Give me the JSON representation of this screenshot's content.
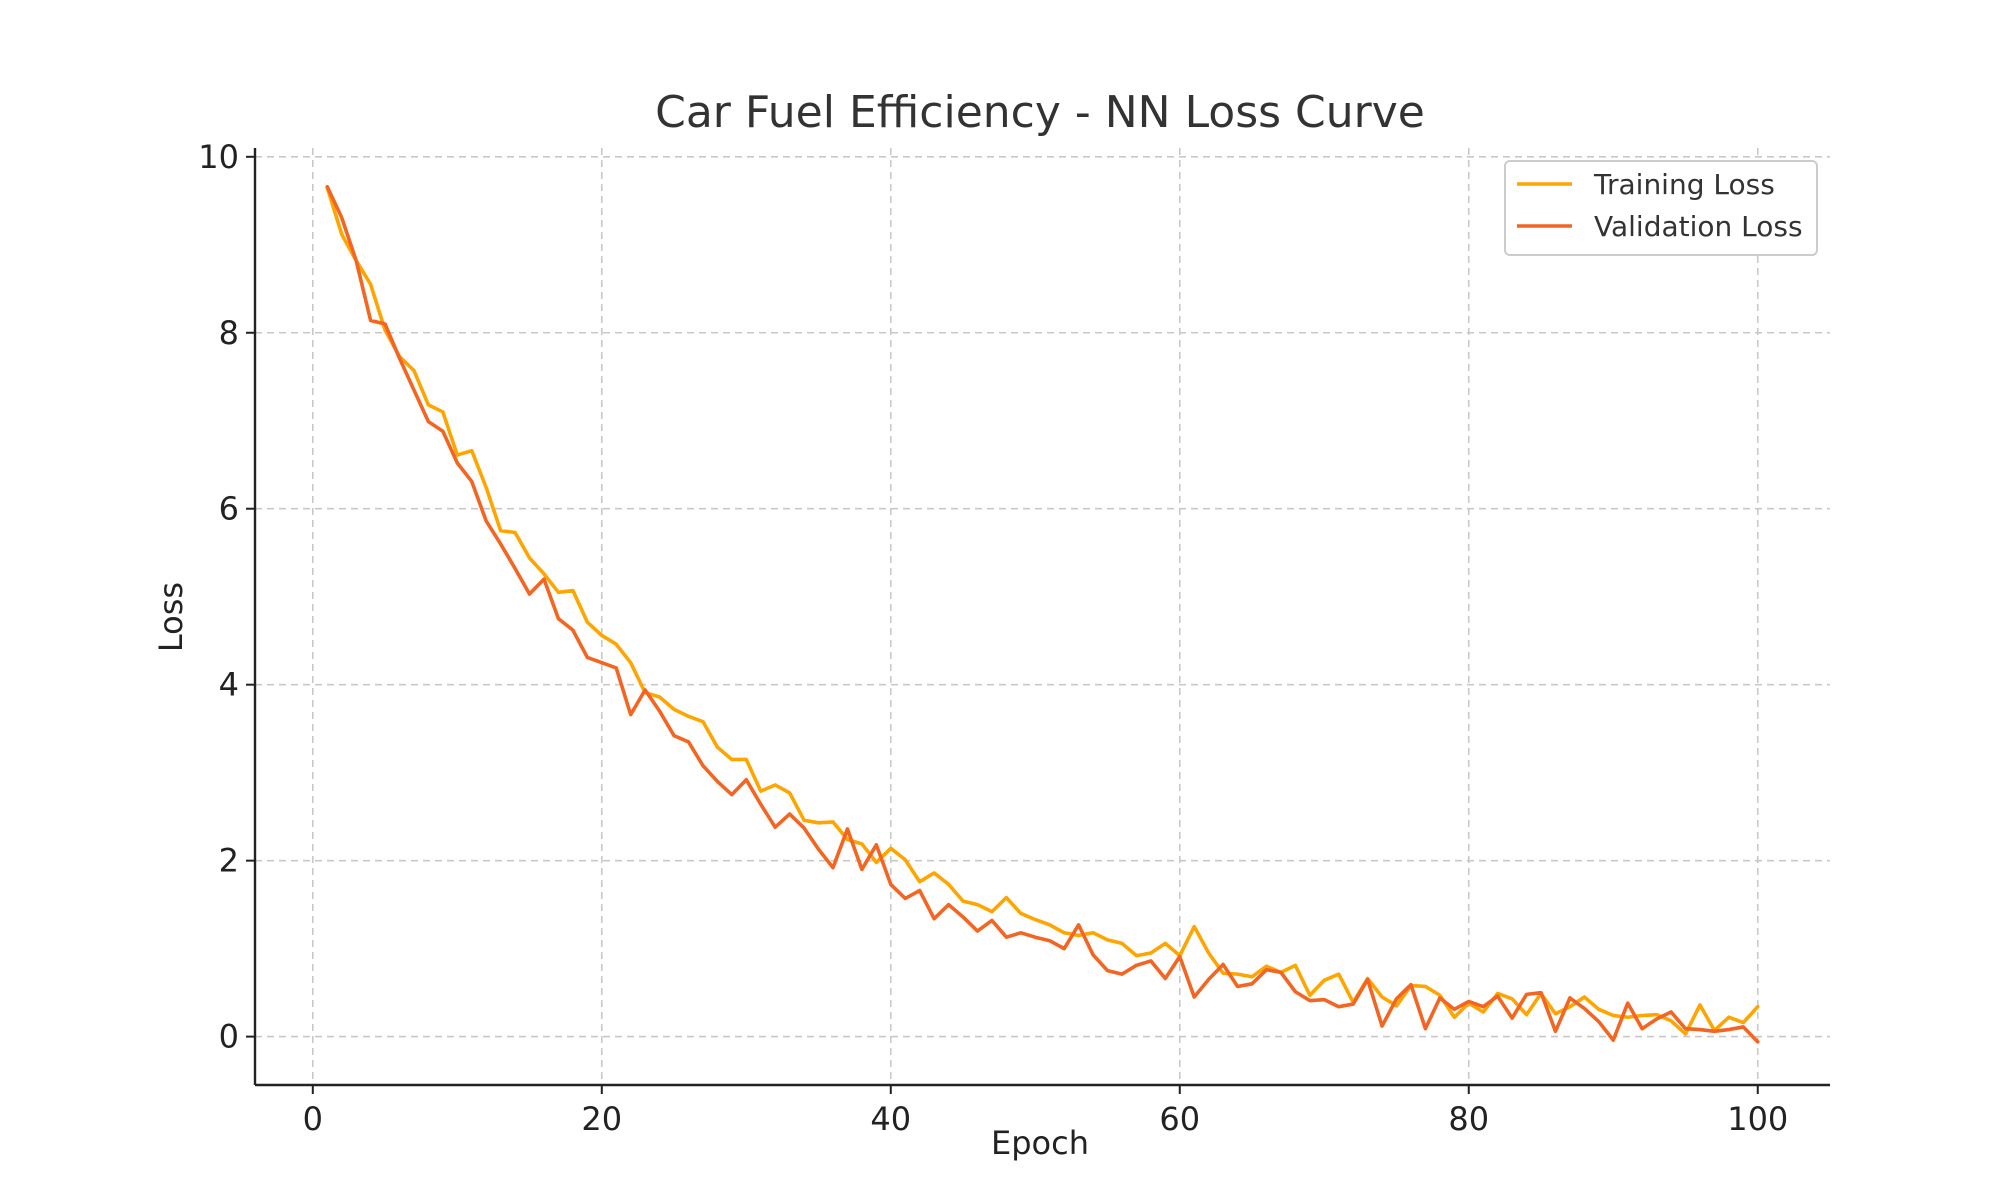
{
  "chart_data": {
    "type": "line",
    "title": "Car Fuel Efficiency - NN Loss Curve",
    "xlabel": "Epoch",
    "ylabel": "Loss",
    "xlim": [
      -4,
      105
    ],
    "ylim": [
      -0.55,
      10.1
    ],
    "xticks": [
      0,
      20,
      40,
      60,
      80,
      100
    ],
    "yticks": [
      0,
      2,
      4,
      6,
      8,
      10
    ],
    "grid": true,
    "legend_position": "top-right",
    "x": [
      1,
      2,
      3,
      4,
      5,
      6,
      7,
      8,
      9,
      10,
      11,
      12,
      13,
      14,
      15,
      16,
      17,
      18,
      19,
      20,
      21,
      22,
      23,
      24,
      25,
      26,
      27,
      28,
      29,
      30,
      31,
      32,
      33,
      34,
      35,
      36,
      37,
      38,
      39,
      40,
      41,
      42,
      43,
      44,
      45,
      46,
      47,
      48,
      49,
      50,
      51,
      52,
      53,
      54,
      55,
      56,
      57,
      58,
      59,
      60,
      61,
      62,
      63,
      64,
      65,
      66,
      67,
      68,
      69,
      70,
      71,
      72,
      73,
      74,
      75,
      76,
      77,
      78,
      79,
      80,
      81,
      82,
      83,
      84,
      85,
      86,
      87,
      88,
      89,
      90,
      91,
      92,
      93,
      94,
      95,
      96,
      97,
      98,
      99,
      100
    ],
    "series": [
      {
        "name": "Training Loss",
        "color": "#FFA500",
        "values": [
          9.65,
          9.12,
          8.82,
          8.55,
          8.03,
          7.73,
          7.57,
          7.18,
          7.1,
          6.61,
          6.66,
          6.24,
          5.75,
          5.73,
          5.44,
          5.26,
          5.05,
          5.07,
          4.71,
          4.56,
          4.46,
          4.25,
          3.91,
          3.86,
          3.72,
          3.64,
          3.58,
          3.29,
          3.15,
          3.15,
          2.79,
          2.86,
          2.77,
          2.46,
          2.43,
          2.44,
          2.24,
          2.19,
          1.98,
          2.14,
          2.01,
          1.76,
          1.86,
          1.73,
          1.54,
          1.5,
          1.42,
          1.58,
          1.4,
          1.33,
          1.27,
          1.18,
          1.15,
          1.18,
          1.1,
          1.06,
          0.92,
          0.95,
          1.06,
          0.92,
          1.25,
          0.95,
          0.72,
          0.71,
          0.68,
          0.8,
          0.73,
          0.81,
          0.47,
          0.64,
          0.71,
          0.39,
          0.66,
          0.45,
          0.35,
          0.58,
          0.57,
          0.47,
          0.22,
          0.38,
          0.28,
          0.49,
          0.43,
          0.25,
          0.49,
          0.26,
          0.34,
          0.45,
          0.31,
          0.24,
          0.22,
          0.24,
          0.25,
          0.18,
          0.03,
          0.36,
          0.07,
          0.22,
          0.16,
          0.34
        ]
      },
      {
        "name": "Validation Loss",
        "color": "#F26522",
        "values": [
          9.66,
          9.31,
          8.82,
          8.14,
          8.1,
          7.71,
          7.35,
          6.99,
          6.88,
          6.52,
          6.31,
          5.86,
          5.6,
          5.32,
          5.03,
          5.2,
          4.75,
          4.62,
          4.31,
          4.25,
          4.19,
          3.66,
          3.94,
          3.7,
          3.42,
          3.35,
          3.08,
          2.9,
          2.75,
          2.92,
          2.64,
          2.38,
          2.53,
          2.37,
          2.13,
          1.92,
          2.36,
          1.9,
          2.18,
          1.73,
          1.57,
          1.66,
          1.34,
          1.5,
          1.36,
          1.2,
          1.32,
          1.13,
          1.18,
          1.13,
          1.09,
          1.0,
          1.27,
          0.93,
          0.75,
          0.71,
          0.81,
          0.86,
          0.66,
          0.91,
          0.45,
          0.65,
          0.82,
          0.57,
          0.6,
          0.76,
          0.73,
          0.51,
          0.41,
          0.42,
          0.34,
          0.37,
          0.65,
          0.12,
          0.43,
          0.59,
          0.09,
          0.44,
          0.31,
          0.4,
          0.34,
          0.46,
          0.21,
          0.48,
          0.5,
          0.06,
          0.44,
          0.32,
          0.17,
          -0.04,
          0.38,
          0.09,
          0.2,
          0.28,
          0.09,
          0.08,
          0.06,
          0.08,
          0.11,
          -0.06
        ]
      }
    ]
  }
}
